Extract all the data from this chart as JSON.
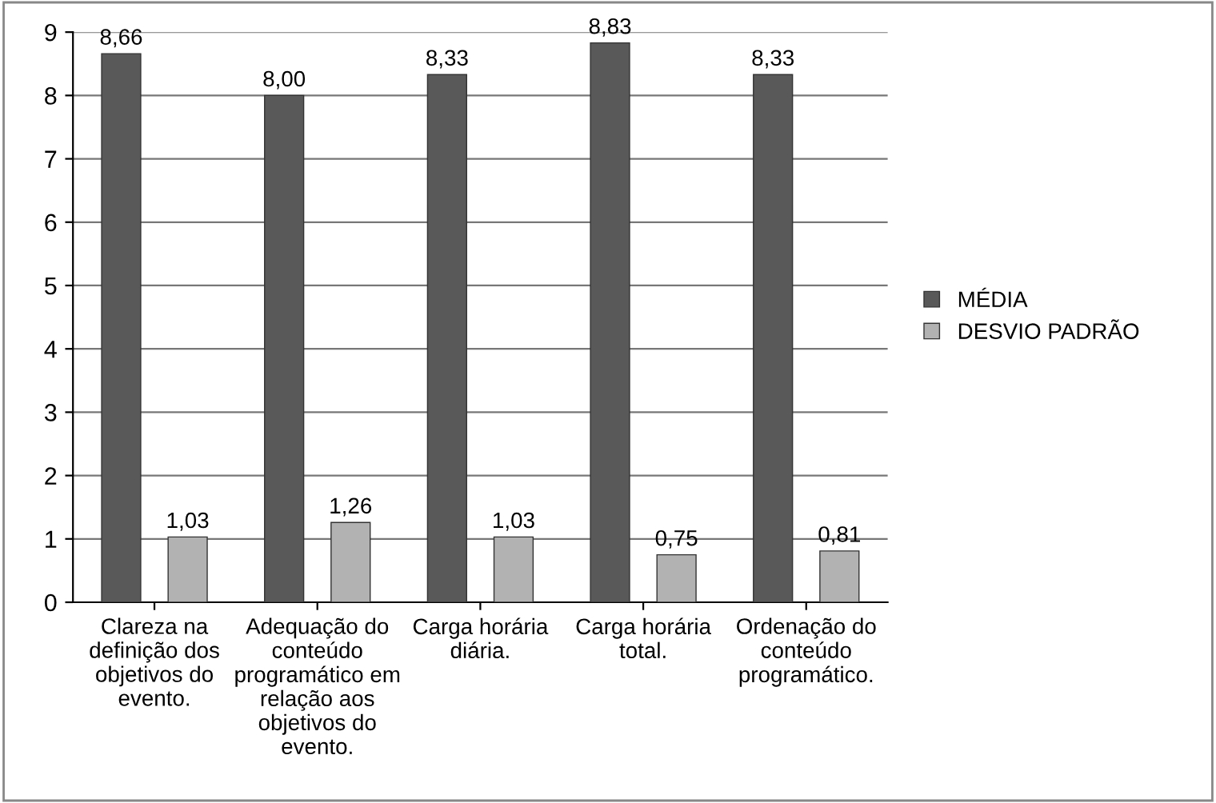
{
  "chart_data": {
    "type": "bar",
    "categories": [
      "Clareza na definição dos objetivos do evento.",
      "Adequação do conteúdo programático em relação aos objetivos do evento.",
      "Carga horária diária.",
      "Carga horária total.",
      "Ordenação do conteúdo programático."
    ],
    "series": [
      {
        "name": "MÉDIA",
        "color": "#595959",
        "values": [
          8.66,
          8.0,
          8.33,
          8.83,
          8.33
        ],
        "value_labels": [
          "8,66",
          "8,00",
          "8,33",
          "8,83",
          "8,33"
        ]
      },
      {
        "name": "DESVIO PADRÃO",
        "color": "#b2b2b2",
        "values": [
          1.03,
          1.26,
          1.03,
          0.75,
          0.81
        ],
        "value_labels": [
          "1,03",
          "1,26",
          "1,03",
          "0,75",
          "0,81"
        ]
      }
    ],
    "ylim": [
      0,
      9
    ],
    "yticks": [
      0,
      1,
      2,
      3,
      4,
      5,
      6,
      7,
      8,
      9
    ],
    "grid": "y",
    "legend": "right"
  }
}
